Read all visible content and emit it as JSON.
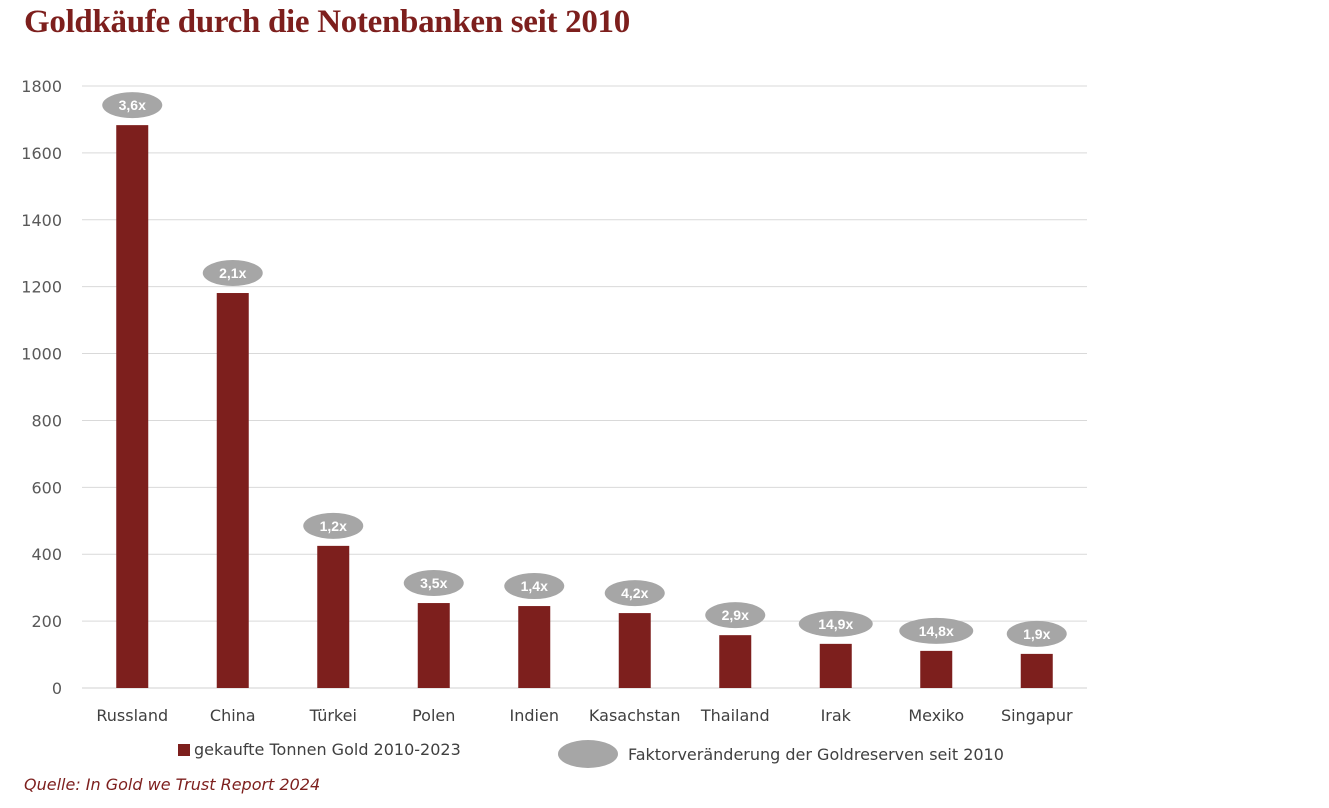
{
  "chart_data": {
    "type": "bar",
    "title": "Goldkäufe durch die Notenbanken seit 2010",
    "xlabel": "",
    "ylabel": "",
    "ylim": [
      0,
      1800
    ],
    "yticks": [
      0,
      200,
      400,
      600,
      800,
      1000,
      1200,
      1400,
      1600,
      1800
    ],
    "grid": true,
    "categories": [
      "Russland",
      "China",
      "Türkei",
      "Polen",
      "Indien",
      "Kasachstan",
      "Thailand",
      "Irak",
      "Mexiko",
      "Singapur"
    ],
    "series": [
      {
        "name": "gekaufte Tonnen Gold 2010-2023",
        "values": [
          1683,
          1181,
          425,
          254,
          245,
          224,
          158,
          132,
          111,
          102
        ],
        "color": "#7d1f1d"
      }
    ],
    "annotations": {
      "name": "Faktorveränderung der Goldreserven seit 2010",
      "labels": [
        "3,6x",
        "2,1x",
        "1,2x",
        "3,5x",
        "1,4x",
        "4,2x",
        "2,9x",
        "14,9x",
        "14,8x",
        "1,9x"
      ],
      "color": "#a6a6a6"
    },
    "legend_position": "bottom",
    "source": "Quelle: In Gold we Trust Report 2024"
  }
}
